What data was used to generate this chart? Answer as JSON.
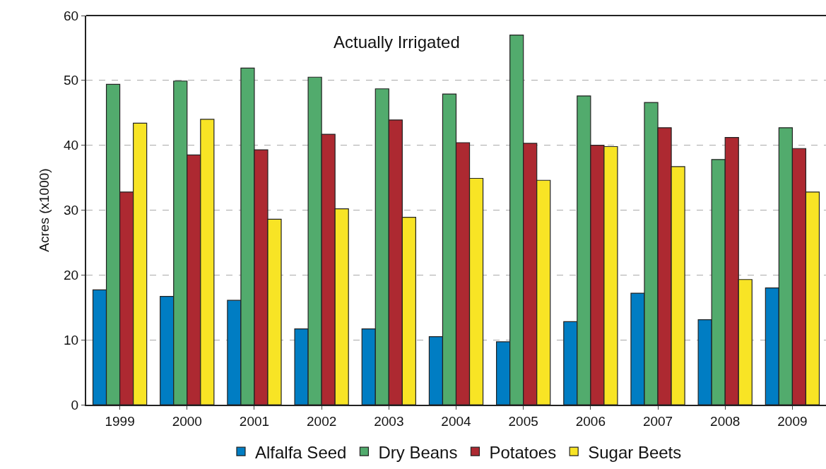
{
  "chart_data": {
    "type": "bar",
    "title": "Actually Irrigated",
    "ylabel": "Acres (x1000)",
    "categories": [
      "1999",
      "2000",
      "2001",
      "2002",
      "2003",
      "2004",
      "2005",
      "2006",
      "2007",
      "2008",
      "2009"
    ],
    "series": [
      {
        "name": "Alfalfa Seed",
        "color": "#007dc3",
        "values": [
          17.7,
          16.7,
          16.1,
          11.7,
          11.7,
          10.5,
          9.7,
          12.8,
          17.2,
          13.1,
          18.0
        ]
      },
      {
        "name": "Dry Beans",
        "color": "#52ab6d",
        "values": [
          49.4,
          49.9,
          51.9,
          50.5,
          48.7,
          47.9,
          57.0,
          47.6,
          46.6,
          37.8,
          42.7
        ]
      },
      {
        "name": "Potatoes",
        "color": "#ad2931",
        "values": [
          32.8,
          38.5,
          39.3,
          41.7,
          43.9,
          40.4,
          40.3,
          40.0,
          42.7,
          41.2,
          39.5
        ]
      },
      {
        "name": "Sugar Beets",
        "color": "#f8e425",
        "values": [
          43.4,
          44.0,
          28.6,
          30.2,
          28.9,
          34.9,
          34.6,
          39.8,
          36.7,
          19.3,
          32.8
        ]
      }
    ],
    "ylim": [
      0,
      60
    ],
    "yticks": [
      0,
      10,
      20,
      30,
      40,
      50,
      60
    ],
    "grid": "y",
    "legend": "bottom"
  }
}
